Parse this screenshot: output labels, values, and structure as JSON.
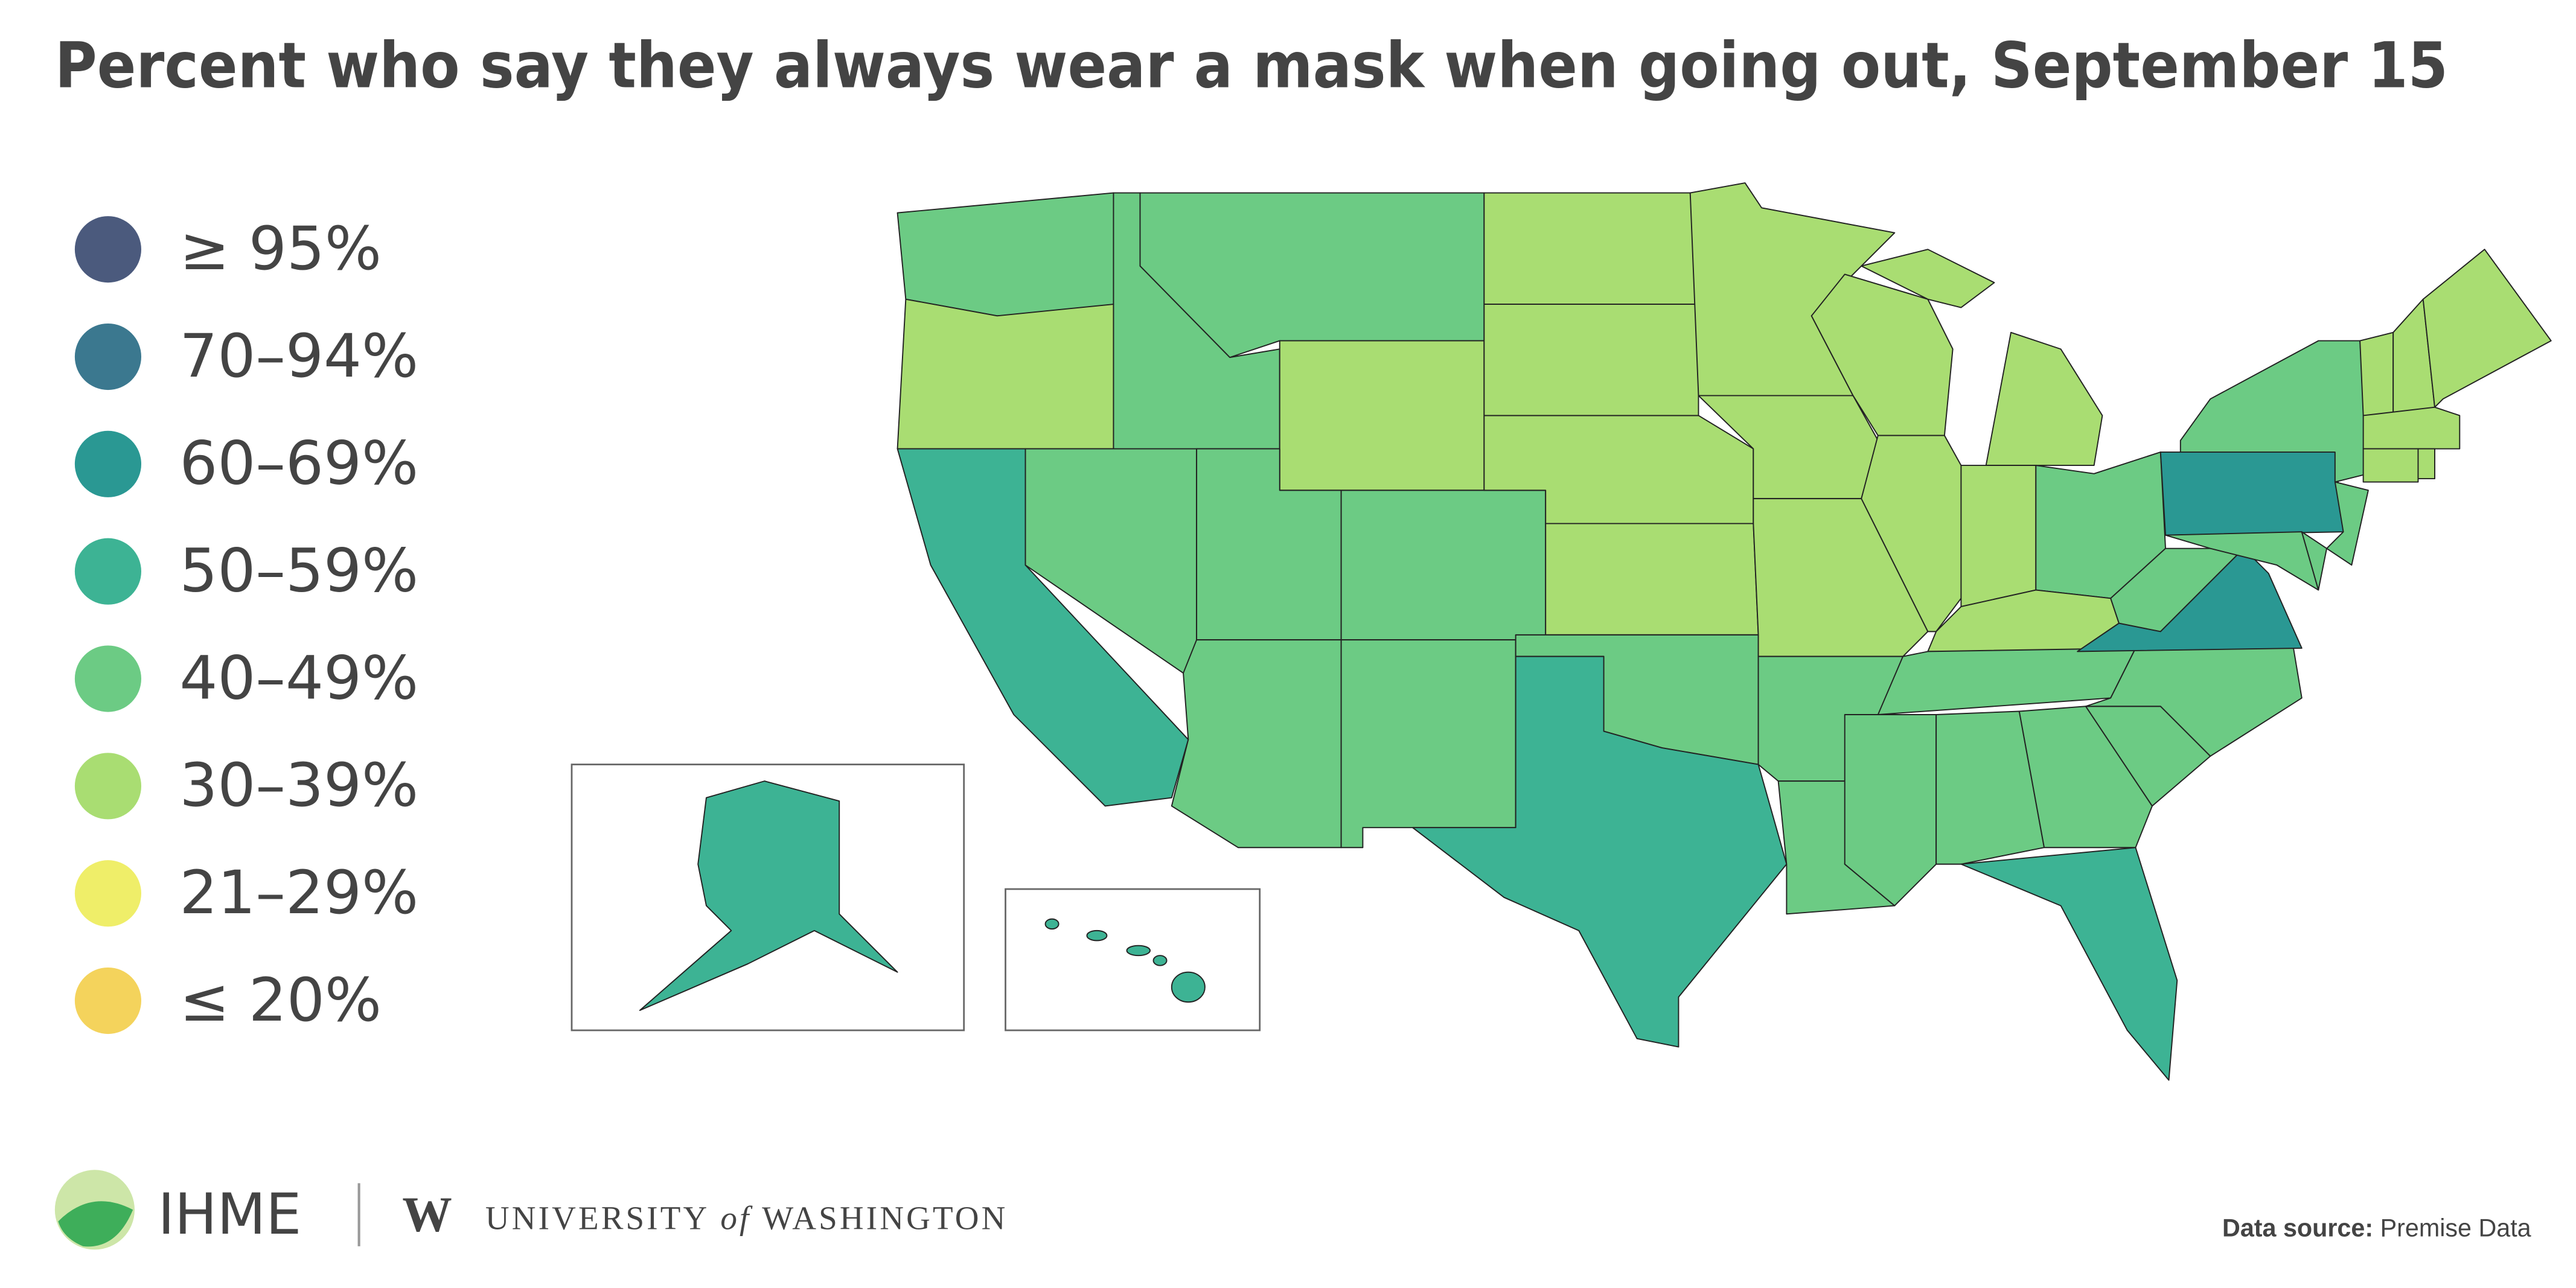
{
  "title": "Percent who say they always wear a mask when going out, September 15",
  "legend": [
    {
      "label": "≥ 95%",
      "color": "#4b5a7d"
    },
    {
      "label": "70–94%",
      "color": "#3b788f"
    },
    {
      "label": "60–69%",
      "color": "#2a9893"
    },
    {
      "label": "50–59%",
      "color": "#3db394"
    },
    {
      "label": "40–49%",
      "color": "#6ccb84"
    },
    {
      "label": "30–39%",
      "color": "#a9dd72"
    },
    {
      "label": "21–29%",
      "color": "#efee69"
    },
    {
      "label": "≤ 20%",
      "color": "#f4d35c"
    }
  ],
  "footer": {
    "org": "IHME",
    "university": "UNIVERSITY",
    "of": "of",
    "place": "WASHINGTON",
    "source_label": "Data source:",
    "source": "Premise Data"
  }
}
